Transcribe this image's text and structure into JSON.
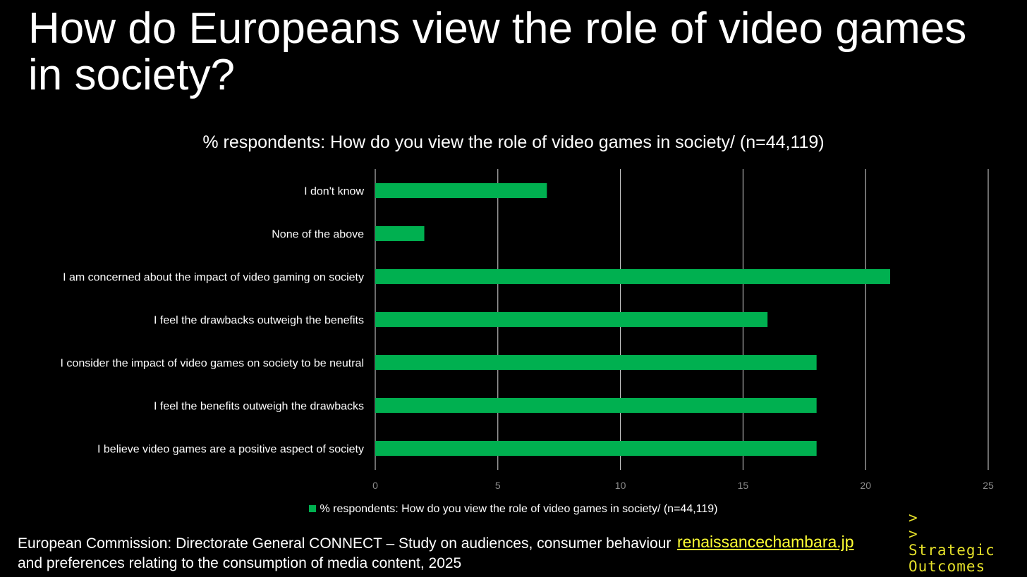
{
  "slide": {
    "title": "How do Europeans view the role of video games in society?",
    "source_text": "European Commission: Directorate General CONNECT – Study on audiences, consumer behaviour and preferences relating to the consumption of media content, 2025",
    "link_text": "renaissancechambara.jp",
    "logo_lines": [
      ">",
      ">",
      "Strategic",
      "Outcomes"
    ]
  },
  "colors": {
    "background": "#000000",
    "bar": "#00b050",
    "gridline": "#d9d9d9",
    "tick_label": "#8c8c8c",
    "link": "#ffff33",
    "logo": "#e5e02a"
  },
  "chart_data": {
    "type": "bar",
    "orientation": "horizontal",
    "title": "% respondents: How do you view the role of video games in society/ (n=44,119)",
    "categories": [
      "I don't know",
      "None of the above",
      "I am concerned about the impact of video gaming on society",
      "I feel the drawbacks outweigh the benefits",
      "I consider the impact of video games on society to be neutral",
      "I feel the benefits outweigh the drawbacks",
      "I believe video games are a positive aspect of society"
    ],
    "series": [
      {
        "name": "% respondents: How do you view the role of video games in society/ (n=44,119)",
        "values": [
          7,
          2,
          21,
          16,
          18,
          18,
          18
        ]
      }
    ],
    "xlim": [
      0,
      25
    ],
    "xticks": [
      0,
      5,
      10,
      15,
      20,
      25
    ],
    "grid": true,
    "legend_position": "bottom"
  }
}
